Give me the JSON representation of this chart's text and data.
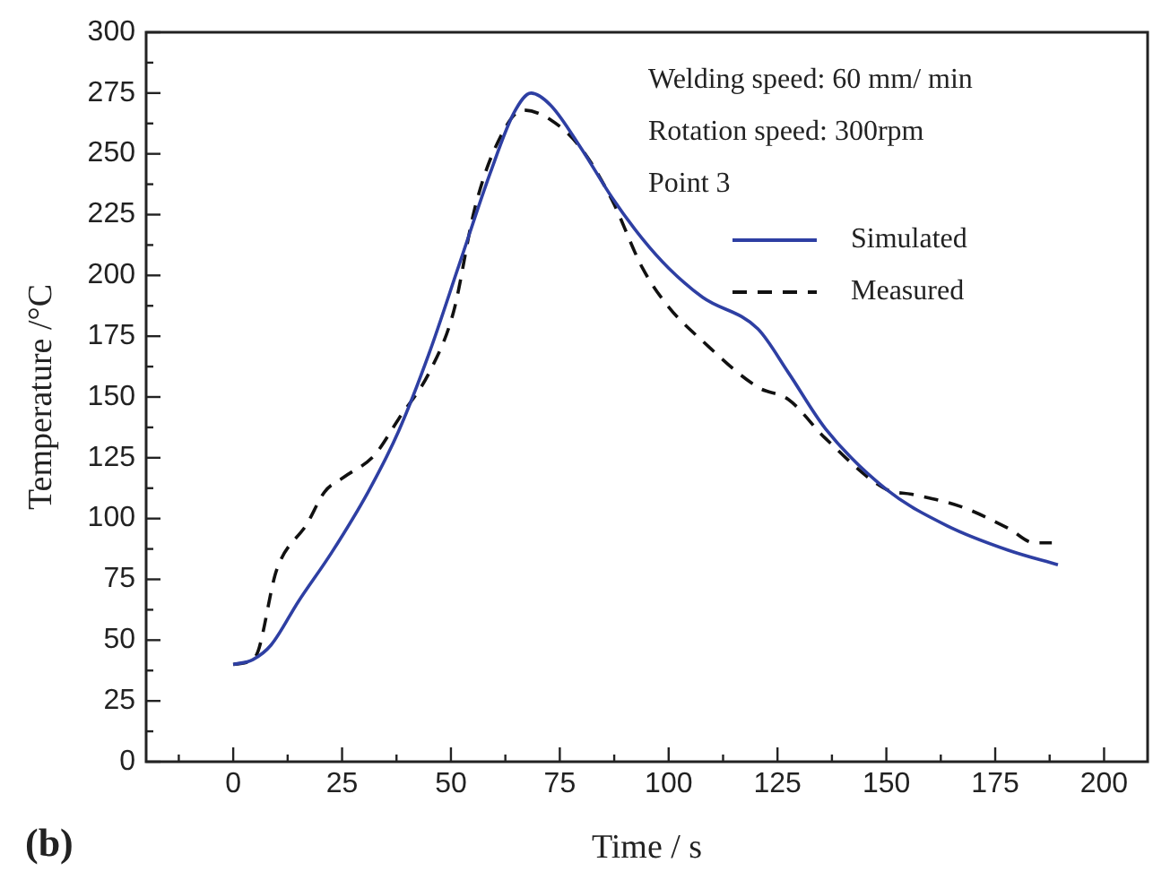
{
  "chart_data": {
    "type": "line",
    "xlabel": "Time / s",
    "ylabel": "Temperature /°C",
    "annotations": [
      "Welding speed: 60 mm/ min",
      "Rotation speed: 300rpm",
      "Point 3",
      "(b)"
    ],
    "xlim": [
      -20,
      210
    ],
    "xticks": [
      0,
      25,
      50,
      75,
      100,
      125,
      150,
      175,
      200
    ],
    "ylim": [
      0,
      300
    ],
    "yticks": [
      0,
      25,
      50,
      75,
      100,
      125,
      150,
      175,
      200,
      225,
      250,
      275,
      300
    ],
    "legend": "top right",
    "grid": false,
    "series": [
      {
        "name": "Simulated",
        "color": "#2e3fa3",
        "line_style": "solid",
        "x": [
          0,
          4.5,
          8.7,
          15,
          22.6,
          31,
          38,
          45,
          52,
          59,
          64.5,
          68.4,
          72.9,
          80,
          87,
          94,
          100,
          107.8,
          120.5,
          127.5,
          136,
          150,
          164,
          178,
          189.4
        ],
        "values": [
          40,
          42,
          48,
          66,
          86,
          111,
          136,
          168,
          205,
          242,
          267,
          275,
          270,
          252,
          232,
          215,
          203,
          191,
          178,
          160,
          137,
          112,
          97,
          87,
          81
        ]
      },
      {
        "name": "Measured",
        "color": "#111111",
        "line_style": "dashed",
        "x": [
          0,
          5,
          10,
          17,
          21,
          25.4,
          32.4,
          38,
          45,
          50.6,
          55.4,
          60.3,
          66.6,
          72.9,
          80,
          87,
          94,
          100,
          107.8,
          120.5,
          127.5,
          136,
          150,
          155.8,
          167,
          178,
          184,
          188
        ],
        "values": [
          40,
          43,
          79,
          98,
          111,
          117,
          126,
          141,
          160,
          185,
          227,
          253,
          268,
          264,
          252,
          231,
          203,
          187,
          173,
          154,
          149,
          133,
          112,
          110,
          105,
          96,
          90,
          90
        ]
      }
    ]
  }
}
